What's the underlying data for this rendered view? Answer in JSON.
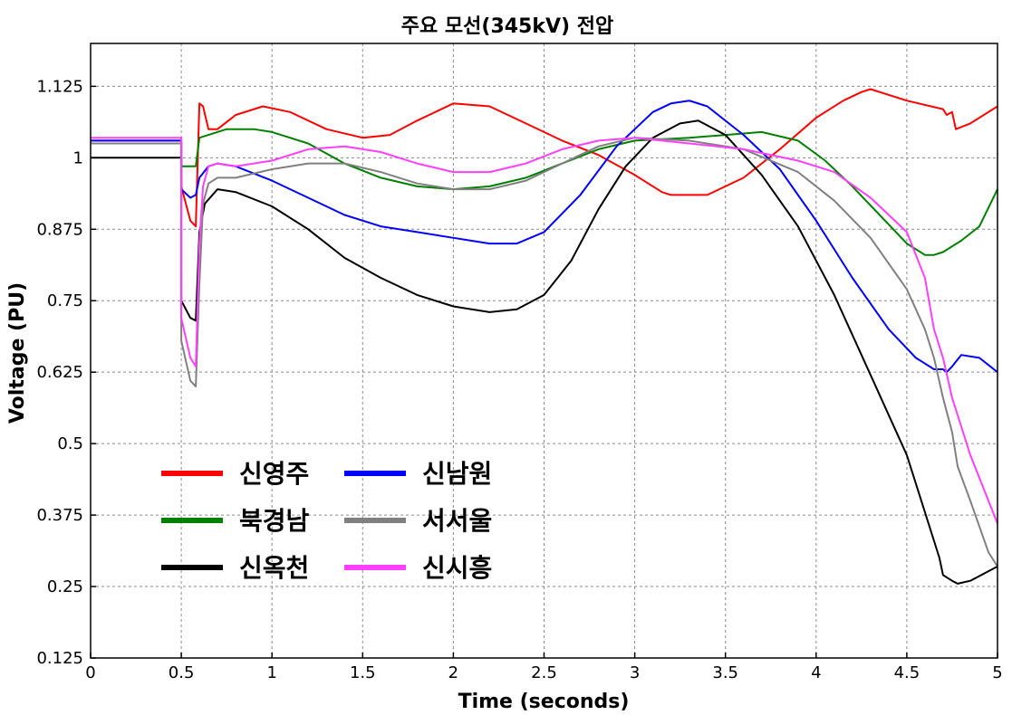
{
  "chart_data": {
    "type": "line",
    "title": "주요 모선(345kV) 전압",
    "xlabel": "Time (seconds)",
    "ylabel": "Voltage (PU)",
    "xlim": [
      0,
      5
    ],
    "ylim": [
      0.125,
      1.2
    ],
    "x_ticks": [
      "0",
      "0.5",
      "1",
      "1.5",
      "2",
      "2.5",
      "3",
      "3.5",
      "4",
      "4.5",
      "5"
    ],
    "y_ticks": [
      "0.125",
      "0.25",
      "0.375",
      "0.5",
      "0.625",
      "0.75",
      "0.875",
      "1",
      "1.125"
    ],
    "x_tick_values": [
      0,
      0.5,
      1,
      1.5,
      2,
      2.5,
      3,
      3.5,
      4,
      4.5,
      5
    ],
    "y_tick_values": [
      0.125,
      0.25,
      0.375,
      0.5,
      0.625,
      0.75,
      0.875,
      1,
      1.125
    ],
    "grid": true,
    "legend_position": "lower-left",
    "series": [
      {
        "name": "신영주",
        "color": "#ff0000",
        "points": [
          [
            0,
            1.03
          ],
          [
            0.5,
            1.03
          ],
          [
            0.5,
            0.95
          ],
          [
            0.55,
            0.89
          ],
          [
            0.58,
            0.88
          ],
          [
            0.6,
            1.095
          ],
          [
            0.62,
            1.09
          ],
          [
            0.65,
            1.05
          ],
          [
            0.7,
            1.05
          ],
          [
            0.8,
            1.075
          ],
          [
            0.95,
            1.09
          ],
          [
            1.1,
            1.08
          ],
          [
            1.3,
            1.05
          ],
          [
            1.5,
            1.035
          ],
          [
            1.65,
            1.04
          ],
          [
            1.8,
            1.065
          ],
          [
            2.0,
            1.095
          ],
          [
            2.2,
            1.09
          ],
          [
            2.4,
            1.06
          ],
          [
            2.6,
            1.03
          ],
          [
            2.8,
            1.005
          ],
          [
            3.0,
            0.97
          ],
          [
            3.15,
            0.94
          ],
          [
            3.2,
            0.935
          ],
          [
            3.4,
            0.935
          ],
          [
            3.6,
            0.965
          ],
          [
            3.8,
            1.015
          ],
          [
            4.0,
            1.07
          ],
          [
            4.15,
            1.1
          ],
          [
            4.25,
            1.115
          ],
          [
            4.3,
            1.12
          ],
          [
            4.5,
            1.1
          ],
          [
            4.7,
            1.085
          ],
          [
            4.72,
            1.075
          ],
          [
            4.75,
            1.08
          ],
          [
            4.77,
            1.05
          ],
          [
            4.85,
            1.06
          ],
          [
            5.0,
            1.09
          ]
        ]
      },
      {
        "name": "북경남",
        "color": "#008000",
        "points": [
          [
            0,
            1.025
          ],
          [
            0.5,
            1.025
          ],
          [
            0.5,
            0.985
          ],
          [
            0.58,
            0.985
          ],
          [
            0.6,
            1.035
          ],
          [
            0.65,
            1.04
          ],
          [
            0.75,
            1.05
          ],
          [
            0.9,
            1.05
          ],
          [
            1.0,
            1.045
          ],
          [
            1.2,
            1.025
          ],
          [
            1.4,
            0.99
          ],
          [
            1.6,
            0.965
          ],
          [
            1.8,
            0.95
          ],
          [
            2.0,
            0.945
          ],
          [
            2.2,
            0.95
          ],
          [
            2.4,
            0.965
          ],
          [
            2.6,
            0.99
          ],
          [
            2.8,
            1.015
          ],
          [
            3.0,
            1.03
          ],
          [
            3.3,
            1.035
          ],
          [
            3.5,
            1.04
          ],
          [
            3.7,
            1.045
          ],
          [
            3.9,
            1.03
          ],
          [
            4.05,
            0.995
          ],
          [
            4.2,
            0.95
          ],
          [
            4.35,
            0.9
          ],
          [
            4.5,
            0.85
          ],
          [
            4.6,
            0.83
          ],
          [
            4.65,
            0.83
          ],
          [
            4.7,
            0.835
          ],
          [
            4.8,
            0.855
          ],
          [
            4.9,
            0.88
          ],
          [
            5.0,
            0.945
          ]
        ]
      },
      {
        "name": "신옥천",
        "color": "#000000",
        "points": [
          [
            0,
            1.0
          ],
          [
            0.5,
            1.0
          ],
          [
            0.5,
            0.75
          ],
          [
            0.55,
            0.72
          ],
          [
            0.58,
            0.715
          ],
          [
            0.6,
            0.87
          ],
          [
            0.63,
            0.92
          ],
          [
            0.7,
            0.945
          ],
          [
            0.8,
            0.94
          ],
          [
            1.0,
            0.915
          ],
          [
            1.2,
            0.875
          ],
          [
            1.4,
            0.825
          ],
          [
            1.6,
            0.79
          ],
          [
            1.8,
            0.76
          ],
          [
            2.0,
            0.74
          ],
          [
            2.2,
            0.73
          ],
          [
            2.35,
            0.735
          ],
          [
            2.5,
            0.76
          ],
          [
            2.65,
            0.82
          ],
          [
            2.8,
            0.91
          ],
          [
            2.95,
            0.985
          ],
          [
            3.1,
            1.035
          ],
          [
            3.25,
            1.06
          ],
          [
            3.35,
            1.065
          ],
          [
            3.5,
            1.04
          ],
          [
            3.7,
            0.97
          ],
          [
            3.9,
            0.88
          ],
          [
            4.1,
            0.76
          ],
          [
            4.3,
            0.62
          ],
          [
            4.5,
            0.48
          ],
          [
            4.6,
            0.38
          ],
          [
            4.68,
            0.3
          ],
          [
            4.7,
            0.27
          ],
          [
            4.75,
            0.26
          ],
          [
            4.78,
            0.255
          ],
          [
            4.85,
            0.26
          ],
          [
            5.0,
            0.285
          ]
        ]
      },
      {
        "name": "신남원",
        "color": "#0000ff",
        "points": [
          [
            0,
            1.03
          ],
          [
            0.5,
            1.03
          ],
          [
            0.5,
            0.945
          ],
          [
            0.55,
            0.93
          ],
          [
            0.58,
            0.935
          ],
          [
            0.6,
            0.965
          ],
          [
            0.65,
            0.985
          ],
          [
            0.7,
            0.99
          ],
          [
            0.8,
            0.985
          ],
          [
            1.0,
            0.96
          ],
          [
            1.2,
            0.93
          ],
          [
            1.4,
            0.9
          ],
          [
            1.6,
            0.88
          ],
          [
            1.8,
            0.87
          ],
          [
            2.0,
            0.86
          ],
          [
            2.2,
            0.85
          ],
          [
            2.35,
            0.85
          ],
          [
            2.5,
            0.87
          ],
          [
            2.7,
            0.935
          ],
          [
            2.9,
            1.02
          ],
          [
            3.1,
            1.08
          ],
          [
            3.2,
            1.095
          ],
          [
            3.3,
            1.1
          ],
          [
            3.4,
            1.09
          ],
          [
            3.6,
            1.04
          ],
          [
            3.8,
            0.98
          ],
          [
            4.0,
            0.89
          ],
          [
            4.2,
            0.79
          ],
          [
            4.4,
            0.7
          ],
          [
            4.55,
            0.65
          ],
          [
            4.65,
            0.63
          ],
          [
            4.7,
            0.63
          ],
          [
            4.72,
            0.625
          ],
          [
            4.75,
            0.635
          ],
          [
            4.8,
            0.655
          ],
          [
            4.9,
            0.65
          ],
          [
            5.0,
            0.625
          ]
        ]
      },
      {
        "name": "서서울",
        "color": "#808080",
        "points": [
          [
            0,
            1.025
          ],
          [
            0.5,
            1.025
          ],
          [
            0.5,
            0.68
          ],
          [
            0.55,
            0.61
          ],
          [
            0.58,
            0.6
          ],
          [
            0.6,
            0.78
          ],
          [
            0.62,
            0.92
          ],
          [
            0.65,
            0.955
          ],
          [
            0.7,
            0.965
          ],
          [
            0.8,
            0.965
          ],
          [
            1.0,
            0.98
          ],
          [
            1.2,
            0.99
          ],
          [
            1.4,
            0.99
          ],
          [
            1.6,
            0.975
          ],
          [
            1.8,
            0.955
          ],
          [
            2.0,
            0.945
          ],
          [
            2.2,
            0.945
          ],
          [
            2.4,
            0.96
          ],
          [
            2.6,
            0.99
          ],
          [
            2.8,
            1.02
          ],
          [
            3.0,
            1.035
          ],
          [
            3.3,
            1.03
          ],
          [
            3.6,
            1.015
          ],
          [
            3.9,
            0.975
          ],
          [
            4.1,
            0.925
          ],
          [
            4.3,
            0.86
          ],
          [
            4.5,
            0.77
          ],
          [
            4.6,
            0.7
          ],
          [
            4.65,
            0.65
          ],
          [
            4.7,
            0.58
          ],
          [
            4.75,
            0.52
          ],
          [
            4.78,
            0.46
          ],
          [
            4.85,
            0.4
          ],
          [
            4.95,
            0.31
          ],
          [
            5.0,
            0.285
          ]
        ]
      },
      {
        "name": "신시흥",
        "color": "#ff40ff",
        "points": [
          [
            0,
            1.035
          ],
          [
            0.5,
            1.035
          ],
          [
            0.5,
            0.72
          ],
          [
            0.55,
            0.65
          ],
          [
            0.58,
            0.635
          ],
          [
            0.6,
            0.85
          ],
          [
            0.62,
            0.95
          ],
          [
            0.65,
            0.985
          ],
          [
            0.7,
            0.99
          ],
          [
            0.8,
            0.985
          ],
          [
            1.0,
            0.995
          ],
          [
            1.2,
            1.015
          ],
          [
            1.4,
            1.02
          ],
          [
            1.6,
            1.01
          ],
          [
            1.8,
            0.99
          ],
          [
            2.0,
            0.975
          ],
          [
            2.2,
            0.975
          ],
          [
            2.4,
            0.99
          ],
          [
            2.6,
            1.015
          ],
          [
            2.8,
            1.03
          ],
          [
            3.0,
            1.035
          ],
          [
            3.3,
            1.025
          ],
          [
            3.6,
            1.015
          ],
          [
            3.9,
            0.995
          ],
          [
            4.1,
            0.975
          ],
          [
            4.3,
            0.93
          ],
          [
            4.5,
            0.87
          ],
          [
            4.6,
            0.79
          ],
          [
            4.65,
            0.7
          ],
          [
            4.7,
            0.65
          ],
          [
            4.75,
            0.58
          ],
          [
            4.85,
            0.48
          ],
          [
            4.95,
            0.4
          ],
          [
            5.0,
            0.36
          ]
        ]
      }
    ]
  }
}
